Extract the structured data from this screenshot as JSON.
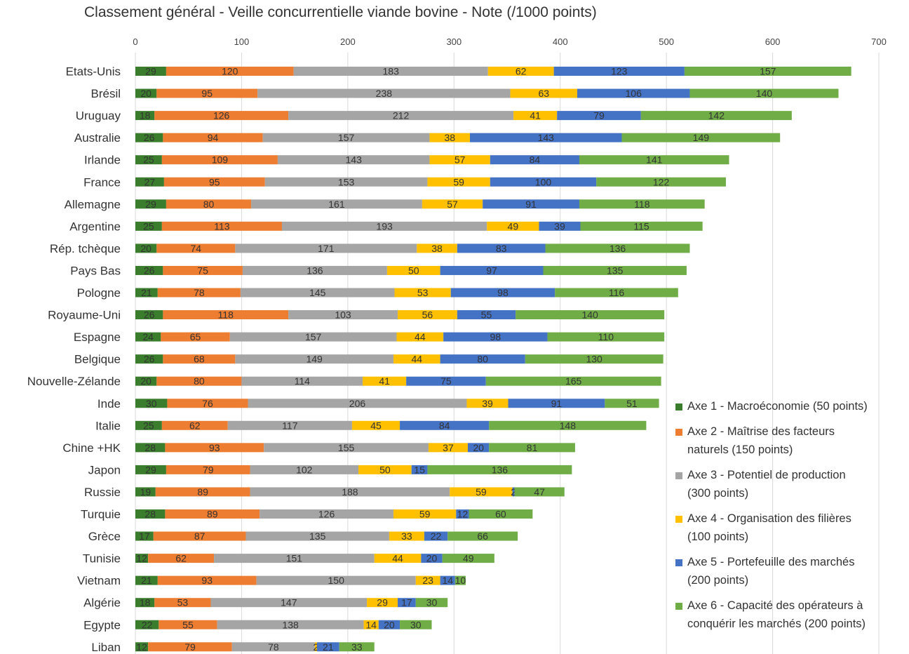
{
  "colors": {
    "axe1": "#3a7d2c",
    "axe2": "#ed7d31",
    "axe3": "#a5a5a5",
    "axe4": "#ffc000",
    "axe5": "#4472c4",
    "axe6": "#70ad47"
  },
  "chart_data": {
    "type": "bar",
    "orientation": "horizontal",
    "stacked": true,
    "title": "Classement général - Veille concurrentielle viande bovine - Note (/1000 points)",
    "xlim": [
      0,
      700
    ],
    "xticks": [
      0,
      100,
      200,
      300,
      400,
      500,
      600,
      700
    ],
    "grid": true,
    "legend_position": "right",
    "categories": [
      "Etats-Unis",
      "Brésil",
      "Uruguay",
      "Australie",
      "Irlande",
      "France",
      "Allemagne",
      "Argentine",
      "Rép. tchèque",
      "Pays Bas",
      "Pologne",
      "Royaume-Uni",
      "Espagne",
      "Belgique",
      "Nouvelle-Zélande",
      "Inde",
      "Italie",
      "Chine +HK",
      "Japon",
      "Russie",
      "Turquie",
      "Grèce",
      "Tunisie",
      "Vietnam",
      "Algérie",
      "Egypte",
      "Liban"
    ],
    "series": [
      {
        "name": "Axe 1 - Macroéconomie (50 points)",
        "color_key": "axe1",
        "values": [
          29,
          20,
          18,
          26,
          25,
          27,
          29,
          25,
          20,
          26,
          21,
          26,
          24,
          26,
          20,
          30,
          25,
          28,
          29,
          19,
          28,
          17,
          12,
          21,
          18,
          22,
          12
        ]
      },
      {
        "name": "Axe 2 - Maîtrise des facteurs naturels (150 points)",
        "color_key": "axe2",
        "values": [
          120,
          95,
          126,
          94,
          109,
          95,
          80,
          113,
          74,
          75,
          78,
          118,
          65,
          68,
          80,
          76,
          62,
          93,
          79,
          89,
          89,
          87,
          62,
          93,
          53,
          55,
          79
        ]
      },
      {
        "name": "Axe 3 - Potentiel de production (300 points)",
        "color_key": "axe3",
        "values": [
          183,
          238,
          212,
          157,
          143,
          153,
          161,
          193,
          171,
          136,
          145,
          103,
          157,
          149,
          114,
          206,
          117,
          155,
          102,
          188,
          126,
          135,
          151,
          150,
          147,
          138,
          78
        ]
      },
      {
        "name": "Axe 4 - Organisation des filières (100 points)",
        "color_key": "axe4",
        "values": [
          62,
          63,
          41,
          38,
          57,
          59,
          57,
          49,
          38,
          50,
          53,
          56,
          44,
          44,
          41,
          39,
          45,
          37,
          50,
          59,
          59,
          33,
          44,
          23,
          29,
          14,
          2
        ]
      },
      {
        "name": "Axe 5 - Portefeuille des marchés (200 points)",
        "color_key": "axe5",
        "values": [
          123,
          106,
          79,
          143,
          84,
          100,
          91,
          39,
          83,
          97,
          98,
          55,
          98,
          80,
          75,
          91,
          84,
          20,
          15,
          2,
          12,
          22,
          20,
          14,
          17,
          20,
          21
        ]
      },
      {
        "name": "Axe 6 - Capacité des opérateurs à conquérir les marchés (200 points)",
        "color_key": "axe6",
        "values": [
          157,
          140,
          142,
          149,
          141,
          122,
          118,
          115,
          136,
          135,
          116,
          140,
          110,
          130,
          165,
          51,
          148,
          81,
          136,
          47,
          60,
          66,
          49,
          10,
          30,
          30,
          33
        ]
      }
    ]
  },
  "legend": {
    "items": [
      {
        "lines": [
          "Axe 1 - Macroéconomie (50 points)"
        ],
        "color_key": "axe1"
      },
      {
        "lines": [
          "Axe 2 - Maîtrise des facteurs",
          "naturels (150 points)"
        ],
        "color_key": "axe2"
      },
      {
        "lines": [
          "Axe 3 - Potentiel de production",
          "(300 points)"
        ],
        "color_key": "axe3"
      },
      {
        "lines": [
          "Axe 4 - Organisation des filières",
          "(100 points)"
        ],
        "color_key": "axe4"
      },
      {
        "lines": [
          "Axe 5 - Portefeuille des marchés",
          "(200 points)"
        ],
        "color_key": "axe5"
      },
      {
        "lines": [
          "Axe 6 - Capacité des opérateurs à",
          "conquérir les marchés (200 points)"
        ],
        "color_key": "axe6"
      }
    ]
  }
}
